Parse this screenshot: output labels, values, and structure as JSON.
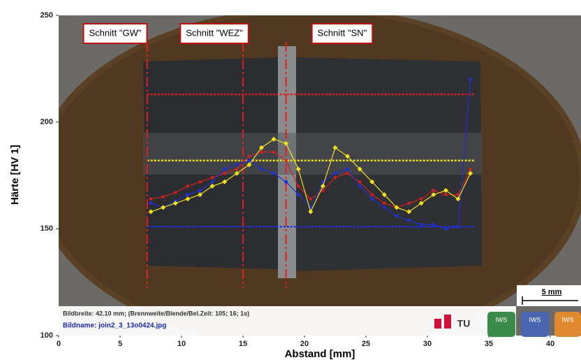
{
  "chart_data": {
    "type": "line",
    "xlabel": "Abstand [mm]",
    "ylabel": "Härte [HV 1]",
    "xlim": [
      0,
      42.5
    ],
    "ylim": [
      100,
      250
    ],
    "xticks": [
      0,
      5,
      10,
      15,
      20,
      25,
      30,
      35,
      40
    ],
    "yticks": [
      100,
      150,
      200,
      250
    ],
    "x": [
      7.5,
      8.5,
      9.5,
      10.5,
      11.5,
      12.5,
      13.5,
      14.5,
      15.5,
      16.5,
      17.5,
      18.5,
      19.5,
      20.5,
      21.5,
      22.5,
      23.5,
      24.5,
      25.5,
      26.5,
      27.5,
      28.5,
      29.5,
      30.5,
      31.5,
      32.5,
      33.5
    ],
    "series": [
      {
        "color": "#d02020",
        "marker": "square",
        "values": [
          164,
          165,
          167,
          170,
          172,
          174,
          176,
          178,
          184,
          186,
          186,
          182,
          170,
          164,
          168,
          174,
          176,
          172,
          166,
          162,
          160,
          162,
          164,
          168,
          166,
          166,
          178
        ]
      },
      {
        "color": "#2030d0",
        "marker": "circle",
        "values": [
          162,
          160,
          163,
          166,
          168,
          172,
          178,
          180,
          182,
          178,
          176,
          172,
          166,
          160,
          172,
          176,
          178,
          170,
          164,
          160,
          156,
          154,
          152,
          152,
          150,
          151,
          220
        ]
      },
      {
        "color": "#f0e020",
        "marker": "diamond",
        "values": [
          158,
          160,
          162,
          164,
          166,
          170,
          172,
          176,
          180,
          188,
          192,
          190,
          178,
          158,
          170,
          188,
          184,
          178,
          172,
          166,
          160,
          158,
          162,
          166,
          168,
          164,
          176
        ]
      }
    ],
    "reference_lines": [
      {
        "value": 213,
        "color": "#e02020",
        "xrange": [
          7.2,
          33.8
        ]
      },
      {
        "value": 182,
        "color": "#f0e020",
        "xrange": [
          7.2,
          33.8
        ]
      },
      {
        "value": 151,
        "color": "#2030e0",
        "xrange": [
          7.2,
          33.8
        ]
      }
    ],
    "annotations": [
      {
        "text": "Schnitt \"GW\"",
        "x": 7.2
      },
      {
        "text": "Schnitt \"WEZ\"",
        "x": 15
      },
      {
        "text": "Schnitt \"SN\"",
        "x": 18.5
      }
    ],
    "caption": [
      "Bildbreite: 42.10 mm; (Brennweite/Blende/Bel.Zeit: 105; 16; 1s)",
      "Bildname: join2_3_13o0424.jpg"
    ],
    "scale_bar": "5 mm",
    "logos": [
      "TU",
      "IWS",
      "IWS",
      "IWS"
    ]
  }
}
